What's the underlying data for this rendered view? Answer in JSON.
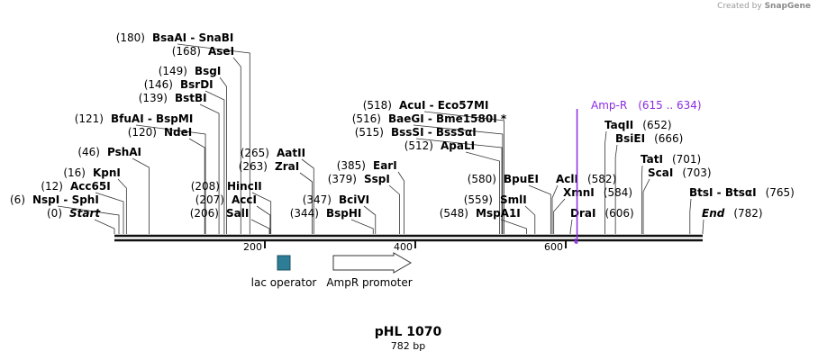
{
  "credit": {
    "prefix": "Created by",
    "brand": "SnapGene"
  },
  "plasmid": {
    "name": "pHL 1070",
    "length_text": "782 bp"
  },
  "axis_ticks": [
    {
      "label": "200",
      "value": 200
    },
    {
      "label": "400",
      "value": 400
    },
    {
      "label": "600",
      "value": 600
    }
  ],
  "sites": [
    {
      "pos": "(180)",
      "names": [
        "BsaAI",
        "SnaBI"
      ],
      "at": 180
    },
    {
      "pos": "(168)",
      "names": [
        "AseI"
      ],
      "at": 168
    },
    {
      "pos": "(149)",
      "names": [
        "BsgI"
      ],
      "at": 149
    },
    {
      "pos": "(146)",
      "names": [
        "BsrDI"
      ],
      "at": 146
    },
    {
      "pos": "(139)",
      "names": [
        "BstBI"
      ],
      "at": 139
    },
    {
      "pos": "(121)",
      "names": [
        "BfuAI",
        "BspMI"
      ],
      "at": 121
    },
    {
      "pos": "(120)",
      "names": [
        "NdeI"
      ],
      "at": 120
    },
    {
      "pos": "(46)",
      "names": [
        "PshAI"
      ],
      "at": 46
    },
    {
      "pos": "(16)",
      "names": [
        "KpnI"
      ],
      "at": 16
    },
    {
      "pos": "(12)",
      "names": [
        "Acc65I"
      ],
      "at": 12
    },
    {
      "pos": "(6)",
      "names": [
        "NspI",
        "SphI"
      ],
      "at": 6
    },
    {
      "pos": "(0)",
      "names": [
        "Start"
      ],
      "at": 0,
      "italic": true
    },
    {
      "pos": "(265)",
      "names": [
        "AatII"
      ],
      "at": 265
    },
    {
      "pos": "(263)",
      "names": [
        "ZraI"
      ],
      "at": 263
    },
    {
      "pos": "(208)",
      "names": [
        "HincII"
      ],
      "at": 208
    },
    {
      "pos": "(207)",
      "names": [
        "AccI"
      ],
      "at": 207
    },
    {
      "pos": "(206)",
      "names": [
        "SalI"
      ],
      "at": 206
    },
    {
      "pos": "(347)",
      "names": [
        "BciVI"
      ],
      "at": 347
    },
    {
      "pos": "(344)",
      "names": [
        "BspHI"
      ],
      "at": 344
    },
    {
      "pos": "(518)",
      "names": [
        "AcuI",
        "Eco57MI"
      ],
      "at": 518
    },
    {
      "pos": "(516)",
      "names": [
        "BaeGI",
        "Bme1580I *"
      ],
      "at": 516
    },
    {
      "pos": "(515)",
      "names": [
        "BssSI",
        "BssSαI"
      ],
      "at": 515
    },
    {
      "pos": "(512)",
      "names": [
        "ApaLI"
      ],
      "at": 512
    },
    {
      "pos": "(385)",
      "names": [
        "EarI"
      ],
      "at": 385
    },
    {
      "pos": "(379)",
      "names": [
        "SspI"
      ],
      "at": 379
    },
    {
      "pos": "(580)",
      "names": [
        "BpuEI"
      ],
      "at": 580
    },
    {
      "pos": "(559)",
      "names": [
        "SmlI"
      ],
      "at": 559
    },
    {
      "pos": "(548)",
      "names": [
        "MspA1I"
      ],
      "at": 548
    },
    {
      "pos": "(582)",
      "names": [
        "AclI"
      ],
      "at": 582,
      "pos_after": true
    },
    {
      "pos": "(584)",
      "names": [
        "XmnI"
      ],
      "at": 584,
      "pos_after": true
    },
    {
      "pos": "(606)",
      "names": [
        "DraI"
      ],
      "at": 606,
      "pos_after": true
    },
    {
      "pos": "(652)",
      "names": [
        "TaqII"
      ],
      "at": 652,
      "pos_after": true
    },
    {
      "pos": "(666)",
      "names": [
        "BsiEI"
      ],
      "at": 666,
      "pos_after": true
    },
    {
      "pos": "(701)",
      "names": [
        "TatI"
      ],
      "at": 701,
      "pos_after": true
    },
    {
      "pos": "(703)",
      "names": [
        "ScaI"
      ],
      "at": 703,
      "pos_after": true
    },
    {
      "pos": "(765)",
      "names": [
        "BtsI",
        "BtsαI"
      ],
      "at": 765,
      "pos_after": true
    },
    {
      "pos": "(782)",
      "names": [
        "End"
      ],
      "at": 782,
      "pos_after": true,
      "italic": true
    }
  ],
  "primer": {
    "name": "Amp-R",
    "range": "(615 .. 634)",
    "color": "#8a2be2",
    "start": 615,
    "end": 634
  },
  "features": [
    {
      "label": "lac operator",
      "kind": "box",
      "color": "#2e7d96",
      "start": 220,
      "end": 235
    },
    {
      "label": "AmpR promoter",
      "kind": "arrow",
      "color": "#ffffff",
      "start": 290,
      "end": 395
    }
  ]
}
